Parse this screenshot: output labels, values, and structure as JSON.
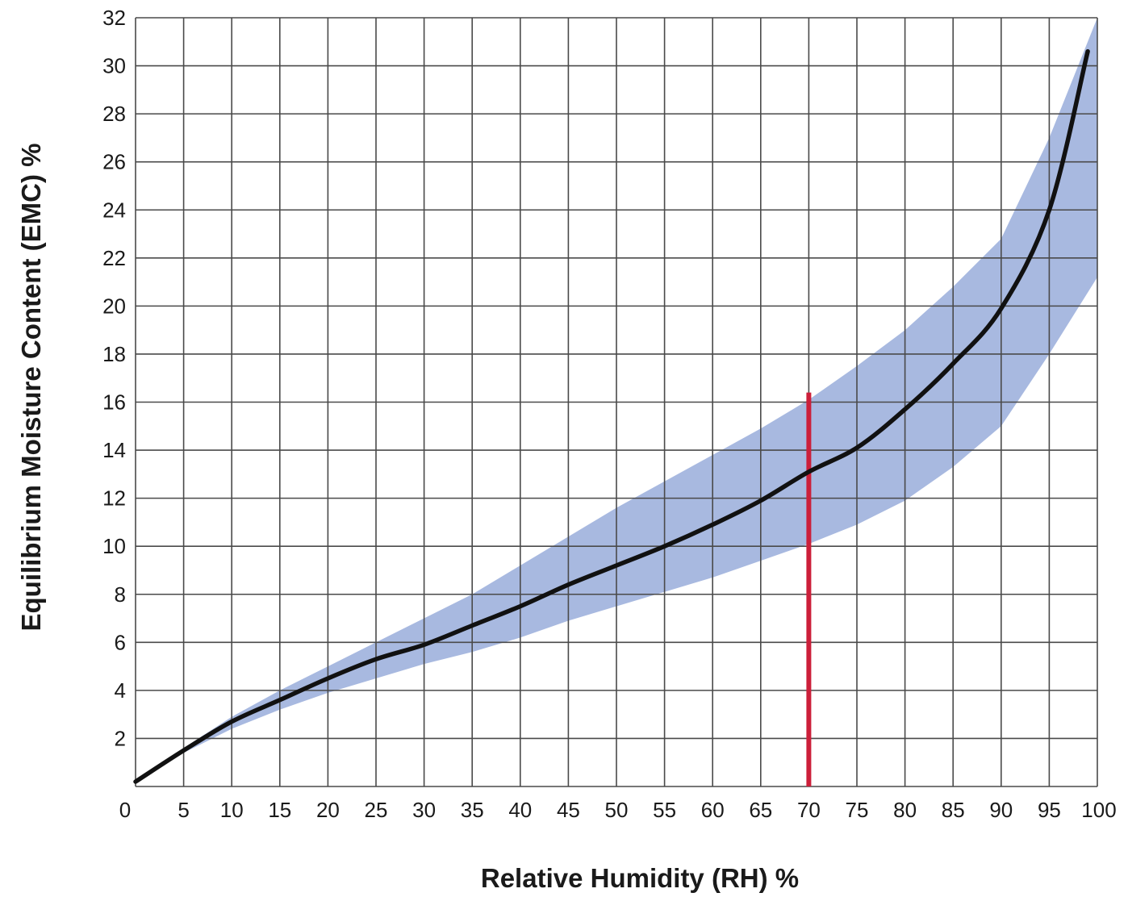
{
  "chart_data": {
    "type": "line",
    "title": "",
    "xlabel": "Relative Humidity (RH) %",
    "ylabel": "Equilibrium Moisture Content (EMC) %",
    "xlim": [
      0,
      100
    ],
    "ylim": [
      0,
      32
    ],
    "grid": true,
    "x_ticks": [
      0,
      5,
      10,
      15,
      20,
      25,
      30,
      35,
      40,
      45,
      50,
      55,
      60,
      65,
      70,
      75,
      80,
      85,
      90,
      95,
      100
    ],
    "x_tick_labels": [
      "0",
      "5",
      "10",
      "15",
      "20",
      "25",
      "30",
      "35",
      "40",
      "45",
      "50",
      "55",
      "60",
      "65",
      "70",
      "75",
      "80",
      "85",
      "90",
      "95",
      "100"
    ],
    "y_ticks": [
      2,
      4,
      6,
      8,
      10,
      12,
      14,
      16,
      18,
      20,
      22,
      24,
      26,
      28,
      30,
      32
    ],
    "y_tick_labels": [
      "2",
      "4",
      "6",
      "8",
      "10",
      "12",
      "14",
      "16",
      "18",
      "20",
      "22",
      "24",
      "26",
      "28",
      "30",
      "32"
    ],
    "curve": {
      "color": "#111111",
      "x": [
        0,
        5,
        10,
        15,
        20,
        25,
        30,
        35,
        40,
        45,
        50,
        55,
        60,
        65,
        70,
        75,
        80,
        85,
        90,
        95,
        99
      ],
      "y": [
        0.2,
        1.5,
        2.7,
        3.6,
        4.5,
        5.3,
        5.9,
        6.7,
        7.5,
        8.4,
        9.2,
        10.0,
        10.9,
        11.9,
        13.1,
        14.1,
        15.7,
        17.6,
        19.9,
        24.0,
        30.6
      ]
    },
    "band": {
      "color": "#a8b9e0",
      "x": [
        0,
        5,
        10,
        15,
        20,
        25,
        30,
        35,
        40,
        45,
        50,
        55,
        60,
        65,
        70,
        75,
        80,
        85,
        90,
        95,
        100
      ],
      "upper": [
        0.3,
        1.6,
        2.9,
        4.0,
        5.0,
        6.0,
        7.0,
        8.0,
        9.2,
        10.4,
        11.6,
        12.7,
        13.8,
        14.9,
        16.1,
        17.5,
        19.0,
        20.8,
        22.8,
        27.0,
        32.0
      ],
      "lower": [
        0.2,
        1.4,
        2.4,
        3.2,
        3.9,
        4.5,
        5.1,
        5.6,
        6.2,
        6.9,
        7.5,
        8.1,
        8.7,
        9.4,
        10.1,
        10.9,
        11.9,
        13.3,
        15.0,
        18.0,
        21.2
      ]
    },
    "marker_line": {
      "x": 70,
      "y_top": 16.4,
      "color": "#cc1f3a"
    }
  }
}
